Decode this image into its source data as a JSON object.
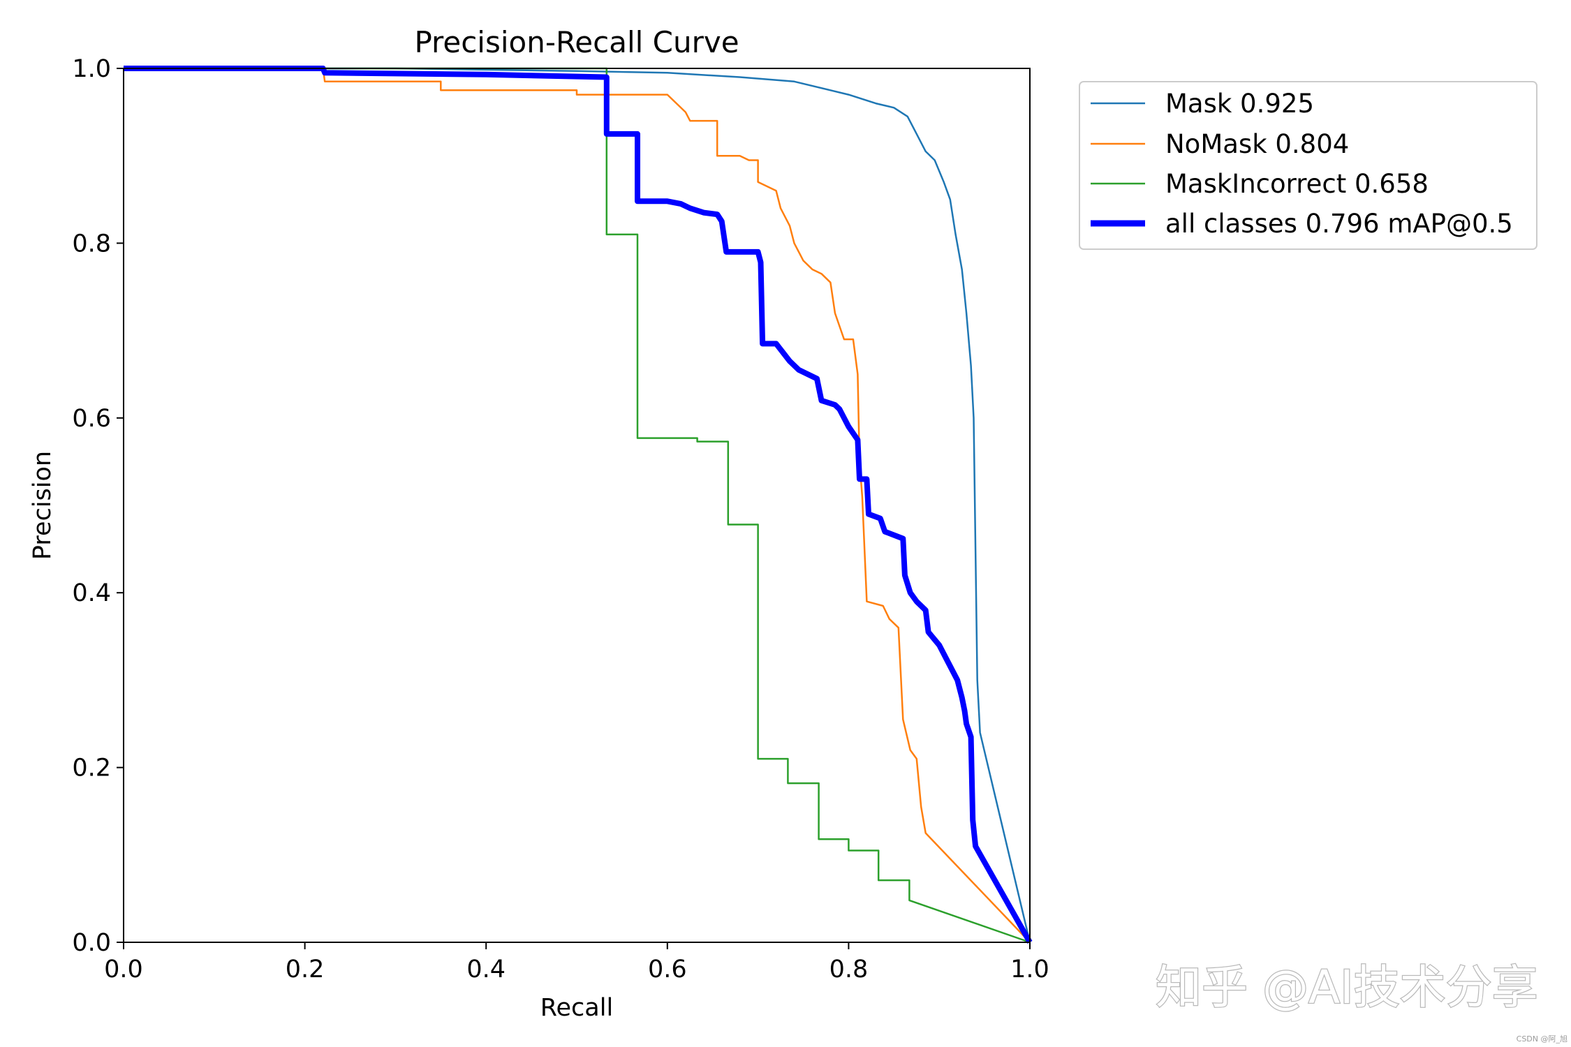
{
  "chart_data": {
    "type": "line",
    "title": "Precision-Recall Curve",
    "xlabel": "Recall",
    "ylabel": "Precision",
    "xlim": [
      0,
      1
    ],
    "ylim": [
      0,
      1
    ],
    "xticks": [
      "0.0",
      "0.2",
      "0.4",
      "0.6",
      "0.8",
      "1.0"
    ],
    "yticks": [
      "0.0",
      "0.2",
      "0.4",
      "0.6",
      "0.8",
      "1.0"
    ],
    "grid": false,
    "legend_position": "outside-upper-right",
    "series": [
      {
        "name": "Mask 0.925",
        "color": "#1f77b4",
        "width": "thin",
        "points": [
          [
            0,
            1
          ],
          [
            0.3,
            1
          ],
          [
            0.5,
            0.997
          ],
          [
            0.6,
            0.995
          ],
          [
            0.68,
            0.99
          ],
          [
            0.74,
            0.985
          ],
          [
            0.78,
            0.975
          ],
          [
            0.8,
            0.97
          ],
          [
            0.83,
            0.96
          ],
          [
            0.85,
            0.955
          ],
          [
            0.865,
            0.945
          ],
          [
            0.875,
            0.925
          ],
          [
            0.885,
            0.905
          ],
          [
            0.895,
            0.895
          ],
          [
            0.905,
            0.87
          ],
          [
            0.912,
            0.85
          ],
          [
            0.918,
            0.81
          ],
          [
            0.925,
            0.77
          ],
          [
            0.93,
            0.72
          ],
          [
            0.935,
            0.66
          ],
          [
            0.938,
            0.6
          ],
          [
            0.94,
            0.45
          ],
          [
            0.942,
            0.3
          ],
          [
            0.945,
            0.24
          ],
          [
            1.0,
            0.0
          ]
        ]
      },
      {
        "name": "NoMask 0.804",
        "color": "#ff7f0e",
        "width": "thin",
        "points": [
          [
            0,
            1
          ],
          [
            0.22,
            1
          ],
          [
            0.222,
            0.985
          ],
          [
            0.35,
            0.985
          ],
          [
            0.35,
            0.975
          ],
          [
            0.5,
            0.975
          ],
          [
            0.5,
            0.97
          ],
          [
            0.6,
            0.97
          ],
          [
            0.61,
            0.96
          ],
          [
            0.62,
            0.95
          ],
          [
            0.625,
            0.94
          ],
          [
            0.655,
            0.94
          ],
          [
            0.655,
            0.9
          ],
          [
            0.68,
            0.9
          ],
          [
            0.69,
            0.895
          ],
          [
            0.7,
            0.895
          ],
          [
            0.7,
            0.87
          ],
          [
            0.72,
            0.86
          ],
          [
            0.725,
            0.84
          ],
          [
            0.735,
            0.82
          ],
          [
            0.74,
            0.8
          ],
          [
            0.75,
            0.78
          ],
          [
            0.76,
            0.77
          ],
          [
            0.77,
            0.765
          ],
          [
            0.78,
            0.755
          ],
          [
            0.785,
            0.72
          ],
          [
            0.795,
            0.69
          ],
          [
            0.805,
            0.69
          ],
          [
            0.81,
            0.65
          ],
          [
            0.812,
            0.55
          ],
          [
            0.815,
            0.51
          ],
          [
            0.82,
            0.39
          ],
          [
            0.838,
            0.385
          ],
          [
            0.845,
            0.37
          ],
          [
            0.855,
            0.36
          ],
          [
            0.86,
            0.255
          ],
          [
            0.868,
            0.22
          ],
          [
            0.875,
            0.21
          ],
          [
            0.88,
            0.155
          ],
          [
            0.885,
            0.125
          ],
          [
            1.0,
            0.0
          ]
        ]
      },
      {
        "name": "MaskIncorrect 0.658",
        "color": "#2ca02c",
        "width": "thin",
        "points": [
          [
            0,
            1
          ],
          [
            0.533,
            1
          ],
          [
            0.533,
            0.81
          ],
          [
            0.567,
            0.81
          ],
          [
            0.567,
            0.577
          ],
          [
            0.633,
            0.577
          ],
          [
            0.633,
            0.573
          ],
          [
            0.667,
            0.573
          ],
          [
            0.667,
            0.478
          ],
          [
            0.7,
            0.478
          ],
          [
            0.7,
            0.21
          ],
          [
            0.733,
            0.21
          ],
          [
            0.733,
            0.182
          ],
          [
            0.767,
            0.182
          ],
          [
            0.767,
            0.118
          ],
          [
            0.8,
            0.118
          ],
          [
            0.8,
            0.105
          ],
          [
            0.833,
            0.105
          ],
          [
            0.833,
            0.071
          ],
          [
            0.867,
            0.071
          ],
          [
            0.867,
            0.048
          ],
          [
            1.0,
            0.0
          ]
        ]
      },
      {
        "name": "all classes 0.796 mAP@0.5",
        "color": "#0000ff",
        "width": "thick",
        "points": [
          [
            0,
            1
          ],
          [
            0.22,
            1
          ],
          [
            0.222,
            0.995
          ],
          [
            0.4,
            0.993
          ],
          [
            0.533,
            0.99
          ],
          [
            0.533,
            0.925
          ],
          [
            0.567,
            0.925
          ],
          [
            0.567,
            0.848
          ],
          [
            0.6,
            0.848
          ],
          [
            0.615,
            0.845
          ],
          [
            0.625,
            0.84
          ],
          [
            0.64,
            0.835
          ],
          [
            0.655,
            0.833
          ],
          [
            0.66,
            0.825
          ],
          [
            0.665,
            0.79
          ],
          [
            0.7,
            0.79
          ],
          [
            0.703,
            0.778
          ],
          [
            0.705,
            0.685
          ],
          [
            0.72,
            0.685
          ],
          [
            0.735,
            0.665
          ],
          [
            0.745,
            0.655
          ],
          [
            0.765,
            0.645
          ],
          [
            0.77,
            0.62
          ],
          [
            0.785,
            0.615
          ],
          [
            0.79,
            0.61
          ],
          [
            0.8,
            0.59
          ],
          [
            0.81,
            0.575
          ],
          [
            0.812,
            0.53
          ],
          [
            0.82,
            0.53
          ],
          [
            0.822,
            0.49
          ],
          [
            0.835,
            0.485
          ],
          [
            0.84,
            0.47
          ],
          [
            0.86,
            0.462
          ],
          [
            0.862,
            0.42
          ],
          [
            0.868,
            0.4
          ],
          [
            0.875,
            0.39
          ],
          [
            0.885,
            0.38
          ],
          [
            0.888,
            0.355
          ],
          [
            0.9,
            0.34
          ],
          [
            0.91,
            0.32
          ],
          [
            0.92,
            0.3
          ],
          [
            0.925,
            0.28
          ],
          [
            0.928,
            0.265
          ],
          [
            0.93,
            0.25
          ],
          [
            0.935,
            0.235
          ],
          [
            0.937,
            0.14
          ],
          [
            0.94,
            0.11
          ],
          [
            1.0,
            0.0
          ]
        ]
      }
    ]
  },
  "watermark_text": "知乎 @AI技术分享",
  "credit_text": "CSDN @阿_旭"
}
